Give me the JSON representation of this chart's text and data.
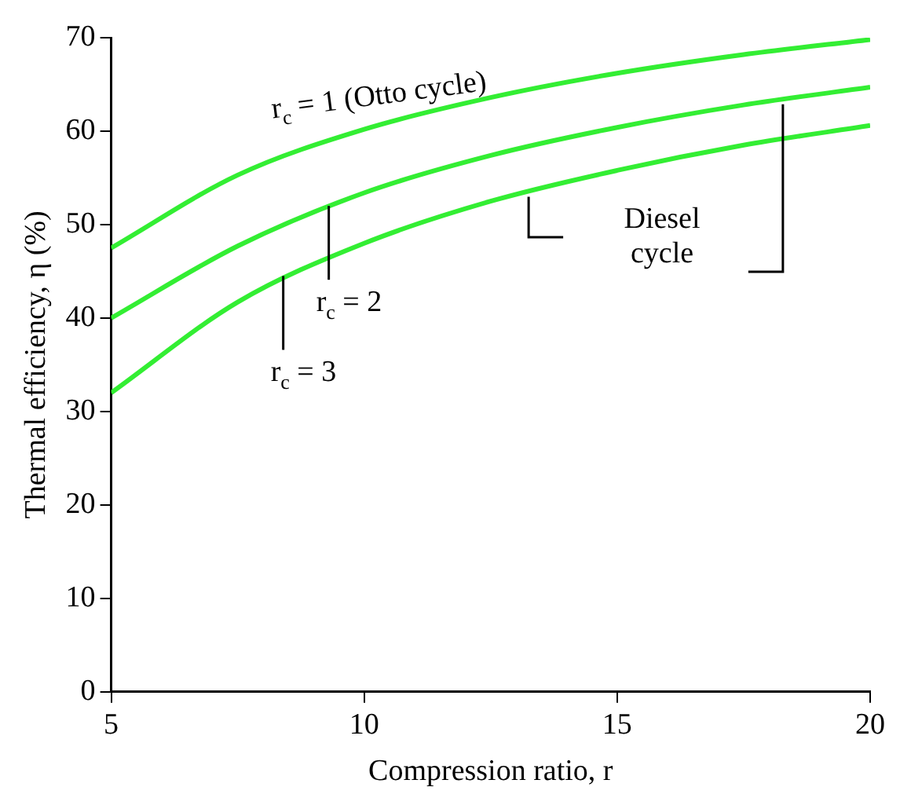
{
  "chart_data": {
    "type": "line",
    "xlabel": "Compression ratio, r",
    "ylabel": "Thermal efficiency, η (%)",
    "x": [
      5,
      7.5,
      10,
      12.5,
      15,
      17.5,
      20
    ],
    "series": [
      {
        "color": "#33ee33",
        "values": [
          47.5,
          55.3,
          60.2,
          63.6,
          66.2,
          68.2,
          69.8
        ]
      },
      {
        "color": "#33ee33",
        "values": [
          40,
          47.7,
          53.4,
          57.4,
          60.4,
          62.8,
          64.7
        ]
      },
      {
        "color": "#33ee33",
        "values": [
          32,
          41.7,
          48,
          52.5,
          55.8,
          58.5,
          60.6
        ]
      }
    ],
    "xlim": [
      5,
      20
    ],
    "xticks": [
      5,
      10,
      15,
      20
    ],
    "ylim": [
      0,
      70
    ],
    "yticks": [
      0,
      10,
      20,
      30,
      40,
      50,
      60,
      70
    ],
    "grid": false,
    "legend": false,
    "marker": "none",
    "line_style": "solid",
    "annotations": [
      {
        "text": "r$_{c}$ = 1 (Otto cycle)",
        "x": 10.5,
        "y": 61
      },
      {
        "text": "r$_{c}$ = 2",
        "x": 9.3,
        "y": 52.5
      },
      {
        "text": "r$_{c}$ = 3",
        "x": 8.4,
        "y": 45
      },
      "Diesel cycle"
    ]
  }
}
